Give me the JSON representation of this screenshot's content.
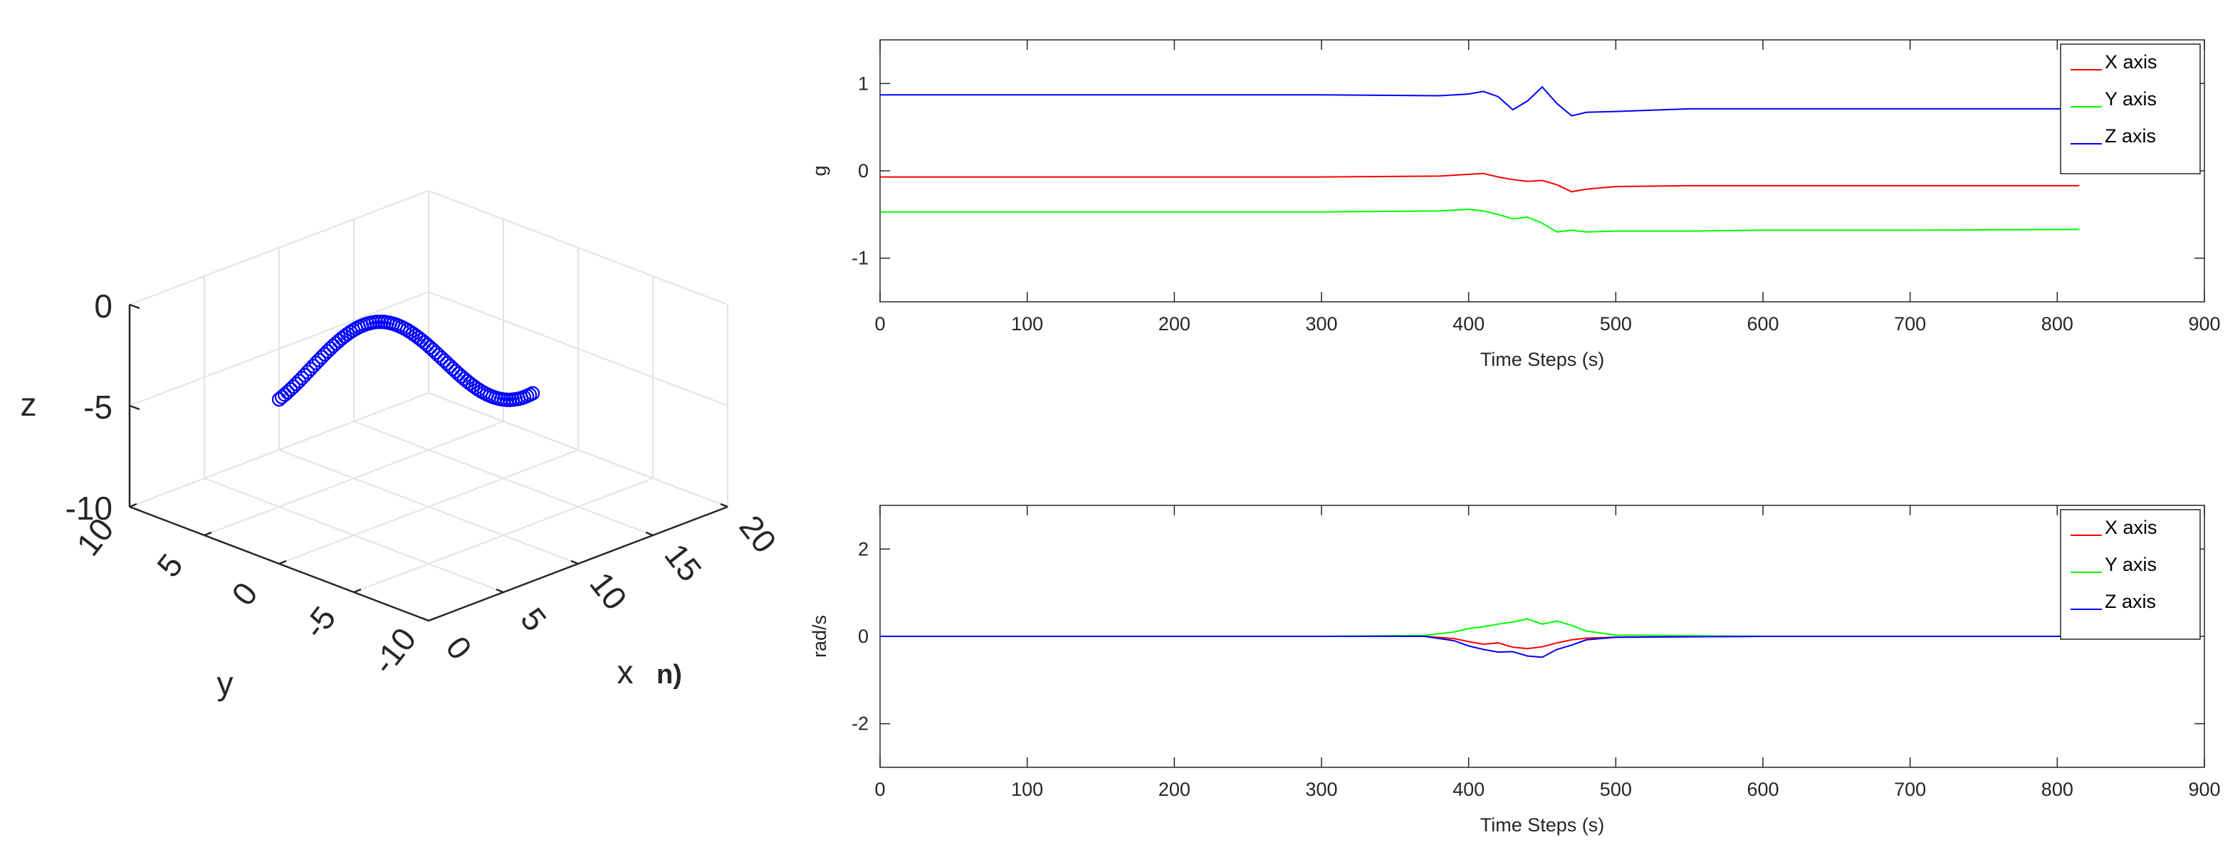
{
  "figure": {
    "trajectory_3d": {
      "z_ticks": [
        "0",
        "-5",
        "-10"
      ],
      "y_ticks": [
        "10",
        "5",
        "0",
        "-5",
        "-10"
      ],
      "x_ticks": [
        "0",
        "5",
        "10",
        "15",
        "20"
      ],
      "xlabel": "x",
      "ylabel": "y",
      "zlabel": "z",
      "fragment_label": "n)",
      "marker_color": "#0000ff"
    }
  },
  "chart_data": [
    {
      "type": "line",
      "title": "",
      "xlabel": "Time Steps (s)",
      "ylabel": "g",
      "xlim": [
        0,
        900
      ],
      "ylim": [
        -1.5,
        1.5
      ],
      "xticks": [
        "0",
        "100",
        "200",
        "300",
        "400",
        "500",
        "600",
        "700",
        "800",
        "900"
      ],
      "yticks": [
        "1",
        "0",
        "-1"
      ],
      "legend_position": "top-right",
      "series": [
        {
          "name": "X axis",
          "color": "#ff0000",
          "x": [
            0,
            100,
            200,
            300,
            380,
            400,
            410,
            420,
            430,
            440,
            450,
            460,
            470,
            480,
            500,
            550,
            600,
            700,
            815
          ],
          "y": [
            -0.07,
            -0.07,
            -0.07,
            -0.07,
            -0.06,
            -0.04,
            -0.03,
            -0.07,
            -0.1,
            -0.12,
            -0.11,
            -0.16,
            -0.24,
            -0.21,
            -0.18,
            -0.17,
            -0.17,
            -0.17,
            -0.17
          ]
        },
        {
          "name": "Y axis",
          "color": "#00ff00",
          "x": [
            0,
            100,
            200,
            300,
            380,
            400,
            410,
            420,
            430,
            440,
            450,
            460,
            470,
            480,
            500,
            550,
            600,
            700,
            815
          ],
          "y": [
            -0.47,
            -0.47,
            -0.47,
            -0.47,
            -0.46,
            -0.44,
            -0.46,
            -0.5,
            -0.55,
            -0.53,
            -0.6,
            -0.7,
            -0.68,
            -0.7,
            -0.69,
            -0.69,
            -0.68,
            -0.68,
            -0.67
          ]
        },
        {
          "name": "Z axis",
          "color": "#0000ff",
          "x": [
            0,
            100,
            200,
            300,
            380,
            400,
            410,
            420,
            430,
            440,
            450,
            460,
            470,
            480,
            500,
            550,
            600,
            700,
            815
          ],
          "y": [
            0.87,
            0.87,
            0.87,
            0.87,
            0.86,
            0.88,
            0.91,
            0.85,
            0.7,
            0.8,
            0.96,
            0.77,
            0.63,
            0.67,
            0.68,
            0.71,
            0.71,
            0.71,
            0.71
          ]
        }
      ]
    },
    {
      "type": "line",
      "title": "",
      "xlabel": "Time Steps (s)",
      "ylabel": "rad/s",
      "xlim": [
        0,
        900
      ],
      "ylim": [
        -3,
        3
      ],
      "xticks": [
        "0",
        "100",
        "200",
        "300",
        "400",
        "500",
        "600",
        "700",
        "800",
        "900"
      ],
      "yticks": [
        "2",
        "0",
        "-2"
      ],
      "legend_position": "top-right",
      "series": [
        {
          "name": "X axis",
          "color": "#ff0000",
          "x": [
            0,
            100,
            200,
            300,
            370,
            390,
            400,
            410,
            420,
            430,
            440,
            450,
            460,
            470,
            480,
            500,
            600,
            700,
            815
          ],
          "y": [
            0,
            0,
            0,
            0,
            0,
            -0.05,
            -0.12,
            -0.18,
            -0.15,
            -0.25,
            -0.28,
            -0.24,
            -0.15,
            -0.08,
            -0.04,
            -0.02,
            0,
            0,
            0
          ]
        },
        {
          "name": "Y axis",
          "color": "#00ff00",
          "x": [
            0,
            100,
            200,
            300,
            370,
            390,
            400,
            410,
            420,
            430,
            440,
            450,
            460,
            470,
            480,
            500,
            600,
            700,
            815
          ],
          "y": [
            0,
            0,
            0,
            0,
            0.02,
            0.1,
            0.18,
            0.22,
            0.28,
            0.33,
            0.4,
            0.28,
            0.35,
            0.25,
            0.12,
            0.03,
            0,
            0,
            0
          ]
        },
        {
          "name": "Z axis",
          "color": "#0000ff",
          "x": [
            0,
            100,
            200,
            300,
            370,
            390,
            400,
            410,
            420,
            430,
            440,
            450,
            460,
            470,
            480,
            500,
            600,
            700,
            815
          ],
          "y": [
            0,
            0,
            0,
            0,
            0,
            -0.1,
            -0.22,
            -0.3,
            -0.36,
            -0.35,
            -0.45,
            -0.48,
            -0.3,
            -0.2,
            -0.08,
            -0.02,
            0,
            0,
            0
          ]
        }
      ]
    }
  ]
}
